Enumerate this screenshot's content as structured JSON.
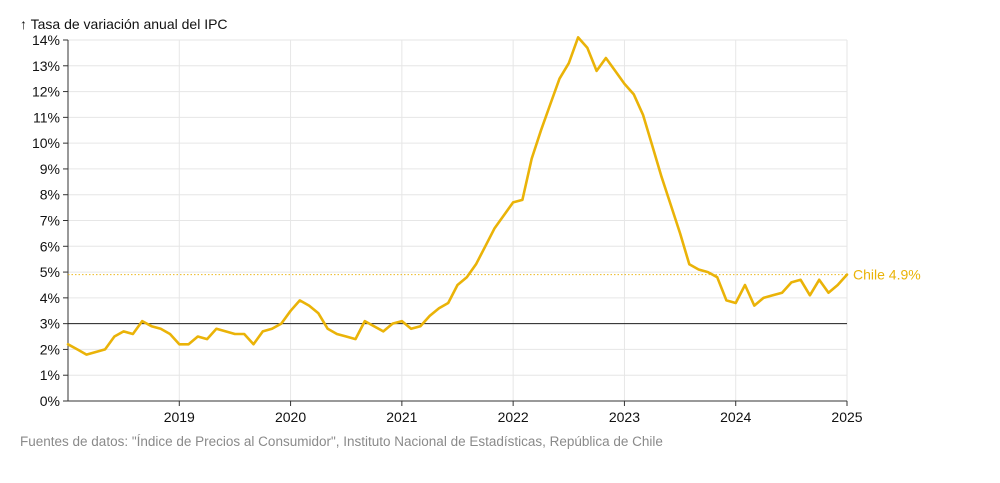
{
  "chart_data": {
    "type": "line",
    "ylabel": "↑ Tasa de variación anual del IPC",
    "xlabel": "",
    "x_ticks": [
      "2019",
      "2020",
      "2021",
      "2022",
      "2023",
      "2024",
      "2025"
    ],
    "y_ticks": [
      "0%",
      "1%",
      "2%",
      "3%",
      "4%",
      "5%",
      "6%",
      "7%",
      "8%",
      "9%",
      "10%",
      "11%",
      "12%",
      "13%",
      "14%"
    ],
    "xlim": [
      "2018-01",
      "2025-01"
    ],
    "ylim": [
      0,
      14
    ],
    "reference_line": 3,
    "grid": true,
    "series": [
      {
        "name": "Chile",
        "end_label": "Chile 4.9%",
        "color": "#eab308",
        "x": [
          "2018-01",
          "2018-02",
          "2018-03",
          "2018-04",
          "2018-05",
          "2018-06",
          "2018-07",
          "2018-08",
          "2018-09",
          "2018-10",
          "2018-11",
          "2018-12",
          "2019-01",
          "2019-02",
          "2019-03",
          "2019-04",
          "2019-05",
          "2019-06",
          "2019-07",
          "2019-08",
          "2019-09",
          "2019-10",
          "2019-11",
          "2019-12",
          "2020-01",
          "2020-02",
          "2020-03",
          "2020-04",
          "2020-05",
          "2020-06",
          "2020-07",
          "2020-08",
          "2020-09",
          "2020-10",
          "2020-11",
          "2020-12",
          "2021-01",
          "2021-02",
          "2021-03",
          "2021-04",
          "2021-05",
          "2021-06",
          "2021-07",
          "2021-08",
          "2021-09",
          "2021-10",
          "2021-11",
          "2021-12",
          "2022-01",
          "2022-02",
          "2022-03",
          "2022-04",
          "2022-05",
          "2022-06",
          "2022-07",
          "2022-08",
          "2022-09",
          "2022-10",
          "2022-11",
          "2022-12",
          "2023-01",
          "2023-02",
          "2023-03",
          "2023-04",
          "2023-05",
          "2023-06",
          "2023-07",
          "2023-08",
          "2023-09",
          "2023-10",
          "2023-11",
          "2023-12",
          "2024-01",
          "2024-02",
          "2024-03",
          "2024-04",
          "2024-05",
          "2024-06",
          "2024-07",
          "2024-08",
          "2024-09",
          "2024-10",
          "2024-11",
          "2024-12",
          "2025-01"
        ],
        "values": [
          2.2,
          2.0,
          1.8,
          1.9,
          2.0,
          2.5,
          2.7,
          2.6,
          3.1,
          2.9,
          2.8,
          2.6,
          2.2,
          2.2,
          2.5,
          2.4,
          2.8,
          2.7,
          2.6,
          2.6,
          2.2,
          2.7,
          2.8,
          3.0,
          3.5,
          3.9,
          3.7,
          3.4,
          2.8,
          2.6,
          2.5,
          2.4,
          3.1,
          2.9,
          2.7,
          3.0,
          3.1,
          2.8,
          2.9,
          3.3,
          3.6,
          3.8,
          4.5,
          4.8,
          5.3,
          6.0,
          6.7,
          7.2,
          7.7,
          7.8,
          9.4,
          10.5,
          11.5,
          12.5,
          13.1,
          14.1,
          13.7,
          12.8,
          13.3,
          12.8,
          12.3,
          11.9,
          11.1,
          9.9,
          8.7,
          7.6,
          6.5,
          5.3,
          5.1,
          5.0,
          4.8,
          3.9,
          3.8,
          4.5,
          3.7,
          4.0,
          4.1,
          4.2,
          4.6,
          4.7,
          4.1,
          4.7,
          4.2,
          4.5,
          4.9
        ]
      }
    ]
  },
  "source_text": "Fuentes de datos: \"Índice de Precios al Consumidor\", Instituto Nacional de Estadísticas, República de Chile"
}
